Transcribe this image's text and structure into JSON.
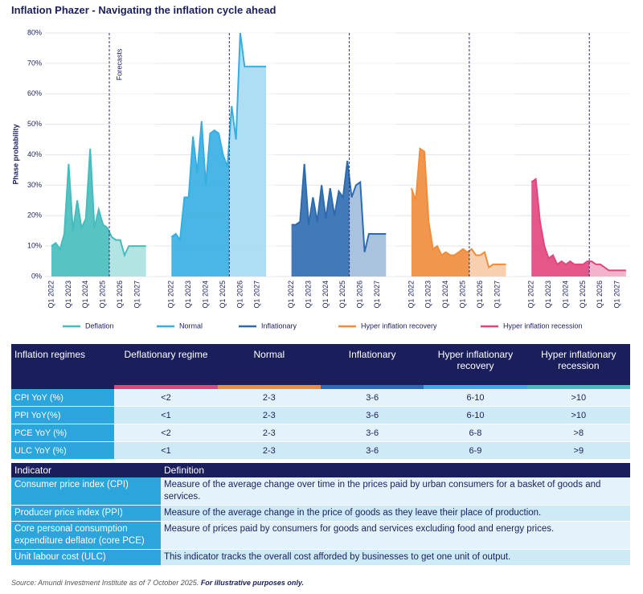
{
  "chart_data": {
    "type": "area",
    "title": "Inflation Phazer - Navigating the inflation cycle ahead",
    "y_label": "Phase probability",
    "annotation": "Forecasts",
    "categories": [
      "Q1 2022",
      null,
      null,
      null,
      "Q1 2023",
      null,
      null,
      null,
      "Q1 2024",
      null,
      null,
      null,
      "Q1 2025",
      null,
      null,
      null,
      "Q1 2026",
      null,
      null,
      null,
      "Q1 2027",
      null,
      null
    ],
    "ylim": [
      0,
      80
    ],
    "yticks": [
      {
        "value": 0,
        "label": "0%"
      },
      {
        "value": 10,
        "label": "10%"
      },
      {
        "value": 20,
        "label": "20%"
      },
      {
        "value": 30,
        "label": "30%"
      },
      {
        "value": 40,
        "label": "40%"
      },
      {
        "value": 50,
        "label": "50%"
      },
      {
        "value": 60,
        "label": "60%"
      },
      {
        "value": 70,
        "label": "70%"
      },
      {
        "value": 80,
        "label": "80%"
      }
    ],
    "grid": true,
    "series": [
      {
        "name": "Deflation",
        "color": "#45bcbd",
        "values": [
          10,
          11,
          9,
          14,
          37,
          15,
          25,
          16,
          19,
          42,
          16,
          22,
          17,
          16,
          13,
          12,
          12,
          7,
          10,
          10,
          10,
          10,
          10
        ]
      },
      {
        "name": "Normal",
        "color": "#36aee2",
        "values": [
          13,
          14,
          12,
          26,
          26,
          46,
          34,
          51,
          30,
          47,
          48,
          47,
          40,
          36,
          56,
          45,
          80,
          69,
          69,
          69,
          69,
          69,
          69
        ]
      },
      {
        "name": "Inflationary",
        "color": "#2d6bb1",
        "values": [
          17,
          17,
          18,
          37,
          17,
          26,
          18,
          30,
          19,
          29,
          20,
          28,
          26,
          38,
          26,
          30,
          31,
          8,
          14,
          14,
          14,
          14,
          14
        ]
      },
      {
        "name": "Hyper inflation recovery",
        "color": "#f08c3a",
        "values": [
          29,
          25,
          42,
          41,
          18,
          9,
          10,
          7,
          8,
          7,
          7,
          8,
          9,
          8,
          9,
          7,
          7,
          8,
          3,
          4,
          4,
          4,
          4
        ]
      },
      {
        "name": "Hyper inflation recession",
        "color": "#e2457e",
        "values": [
          31,
          32,
          18,
          10,
          6,
          7,
          4,
          5,
          4,
          5,
          4,
          4,
          4,
          5,
          5,
          4,
          4,
          3,
          2,
          2,
          2,
          2,
          2
        ]
      }
    ]
  },
  "table1": {
    "header": [
      "Inflation regimes",
      "Deflationary regime",
      "Normal",
      "Inflationary",
      "Hyper inflationary recovery",
      "Hyper inflationary recession"
    ],
    "rows": [
      [
        "CPI YoY (%)",
        "<2",
        "2-3",
        "3-6",
        "6-10",
        ">10"
      ],
      [
        "PPI YoY(%)",
        "<1",
        "2-3",
        "3-6",
        "6-10",
        ">10"
      ],
      [
        "PCE YoY (%)",
        "<2",
        "2-3",
        "3-6",
        "6-8",
        ">8"
      ],
      [
        "ULC YoY (%)",
        "<1",
        "2-3",
        "3-6",
        "6-9",
        ">9"
      ]
    ]
  },
  "table2": {
    "header": [
      "Indicator",
      "Definition"
    ],
    "rows": [
      [
        "Consumer price index (CPI)",
        "Measure of the average change over time in the prices paid by urban consumers for a basket of goods and services."
      ],
      [
        "Producer price index (PPI)",
        "Measure of the average change in the price of goods as they leave their place of production."
      ],
      [
        "Core personal consumption expenditure deflator (core PCE)",
        "Measure of prices paid by consumers for goods and services excluding food and energy prices."
      ],
      [
        "Unit labour cost (ULC)",
        "This indicator tracks the overall cost afforded by businesses to get one unit of output."
      ]
    ]
  },
  "source": {
    "text": "Source: Amundi Investment Institute as of 7 October 2025.",
    "note": "For illustrative purposes only."
  }
}
